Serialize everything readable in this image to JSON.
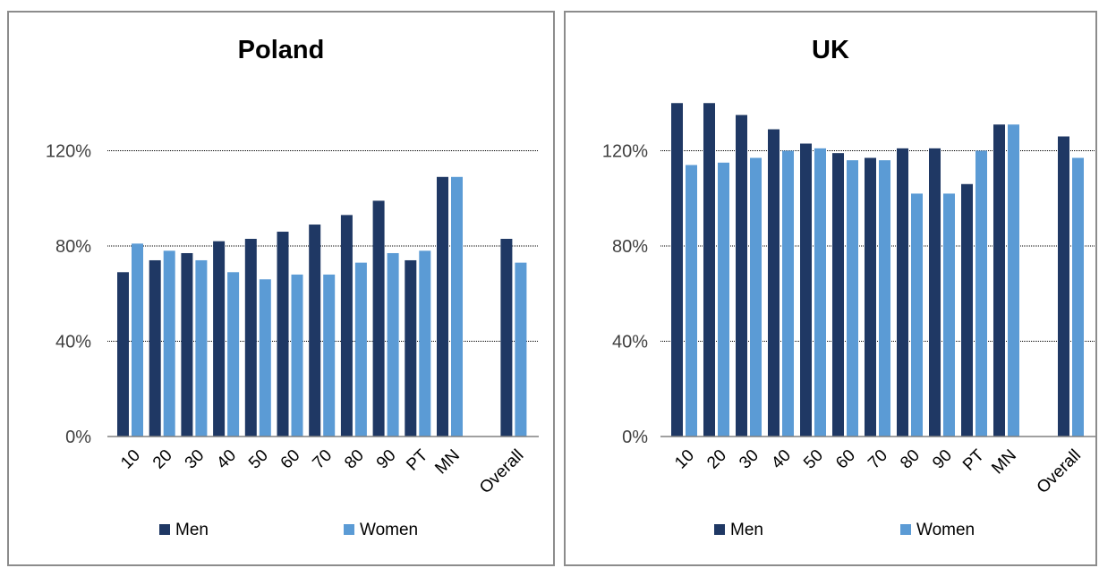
{
  "chart_data": [
    {
      "type": "bar",
      "title": "Poland",
      "categories": [
        "10",
        "20",
        "30",
        "40",
        "50",
        "60",
        "70",
        "80",
        "90",
        "PT",
        "MN",
        "",
        "Overall"
      ],
      "series": [
        {
          "name": "Men",
          "color": "#1f3864",
          "values": [
            69,
            74,
            77,
            82,
            83,
            86,
            89,
            93,
            99,
            74,
            109,
            null,
            83
          ]
        },
        {
          "name": "Women",
          "color": "#5b9bd5",
          "values": [
            81,
            78,
            74,
            69,
            66,
            68,
            68,
            73,
            77,
            78,
            109,
            null,
            73
          ]
        }
      ],
      "yticks": [
        "0%",
        "40%",
        "80%",
        "120%"
      ],
      "ylim": [
        0,
        120
      ],
      "grid": true,
      "legend_position": "bottom"
    },
    {
      "type": "bar",
      "title": "UK",
      "categories": [
        "10",
        "20",
        "30",
        "40",
        "50",
        "60",
        "70",
        "80",
        "90",
        "PT",
        "MN",
        "",
        "Overall"
      ],
      "series": [
        {
          "name": "Men",
          "color": "#1f3864",
          "values": [
            140,
            140,
            135,
            129,
            123,
            119,
            117,
            121,
            121,
            106,
            131,
            null,
            126
          ]
        },
        {
          "name": "Women",
          "color": "#5b9bd5",
          "values": [
            114,
            115,
            117,
            120,
            121,
            116,
            116,
            102,
            102,
            120,
            131,
            null,
            117
          ]
        }
      ],
      "yticks": [
        "0%",
        "40%",
        "80%",
        "120%"
      ],
      "ylim": [
        0,
        120
      ],
      "grid": true,
      "legend_position": "bottom"
    }
  ]
}
